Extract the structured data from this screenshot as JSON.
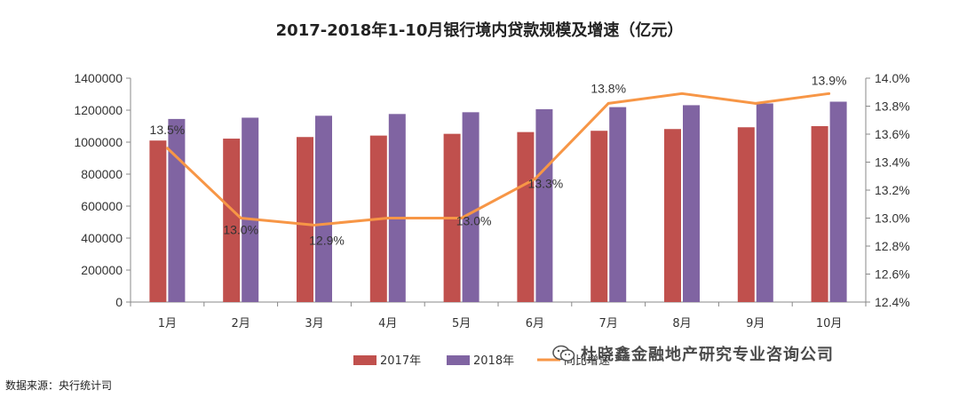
{
  "chart_data": {
    "type": "bar+line",
    "title": "2017-2018年1-10月银行境内贷款规模及增速（亿元）",
    "categories": [
      "1月",
      "2月",
      "3月",
      "4月",
      "5月",
      "6月",
      "7月",
      "8月",
      "9月",
      "10月"
    ],
    "series": [
      {
        "name": "2017年",
        "type": "bar",
        "axis": "left",
        "color": "#c0504d",
        "values": [
          1010000,
          1022000,
          1032000,
          1041000,
          1052000,
          1063000,
          1071000,
          1082000,
          1093000,
          1100000
        ]
      },
      {
        "name": "2018年",
        "type": "bar",
        "axis": "left",
        "color": "#8064a2",
        "values": [
          1145000,
          1153000,
          1165000,
          1176000,
          1187000,
          1206000,
          1219000,
          1231000,
          1242000,
          1253000
        ]
      },
      {
        "name": "同比增速",
        "type": "line",
        "axis": "right",
        "color": "#f79646",
        "values": [
          13.5,
          13.0,
          12.95,
          13.0,
          13.0,
          13.28,
          13.82,
          13.89,
          13.82,
          13.89
        ]
      }
    ],
    "data_labels": [
      {
        "index": 0,
        "text": "13.5%"
      },
      {
        "index": 1,
        "text": "13.0%"
      },
      {
        "index": 2,
        "text": "12.9%"
      },
      {
        "index": 4,
        "text": "13.0%"
      },
      {
        "index": 5,
        "text": "13.3%"
      },
      {
        "index": 6,
        "text": "13.8%"
      },
      {
        "index": 9,
        "text": "13.9%"
      }
    ],
    "y_left": {
      "min": 0,
      "max": 1400000,
      "step": 200000,
      "tick_labels": [
        "0",
        "200000",
        "400000",
        "600000",
        "800000",
        "1000000",
        "1200000",
        "1400000"
      ]
    },
    "y_right": {
      "min": 12.4,
      "max": 14.0,
      "step": 0.2,
      "tick_labels": [
        "12.4%",
        "12.6%",
        "12.8%",
        "13.0%",
        "13.2%",
        "13.4%",
        "13.6%",
        "13.8%",
        "14.0%"
      ]
    },
    "legend": [
      "2017年",
      "2018年",
      "同比增速"
    ],
    "legend_position": "bottom",
    "grid": false
  },
  "source_text": "数据来源：央行统计司",
  "watermark_text": "杜晓鑫金融地产研究专业咨询公司",
  "colors": {
    "bar2017": "#c0504d",
    "bar2018": "#8064a2",
    "line": "#f79646",
    "axis": "#888888"
  }
}
